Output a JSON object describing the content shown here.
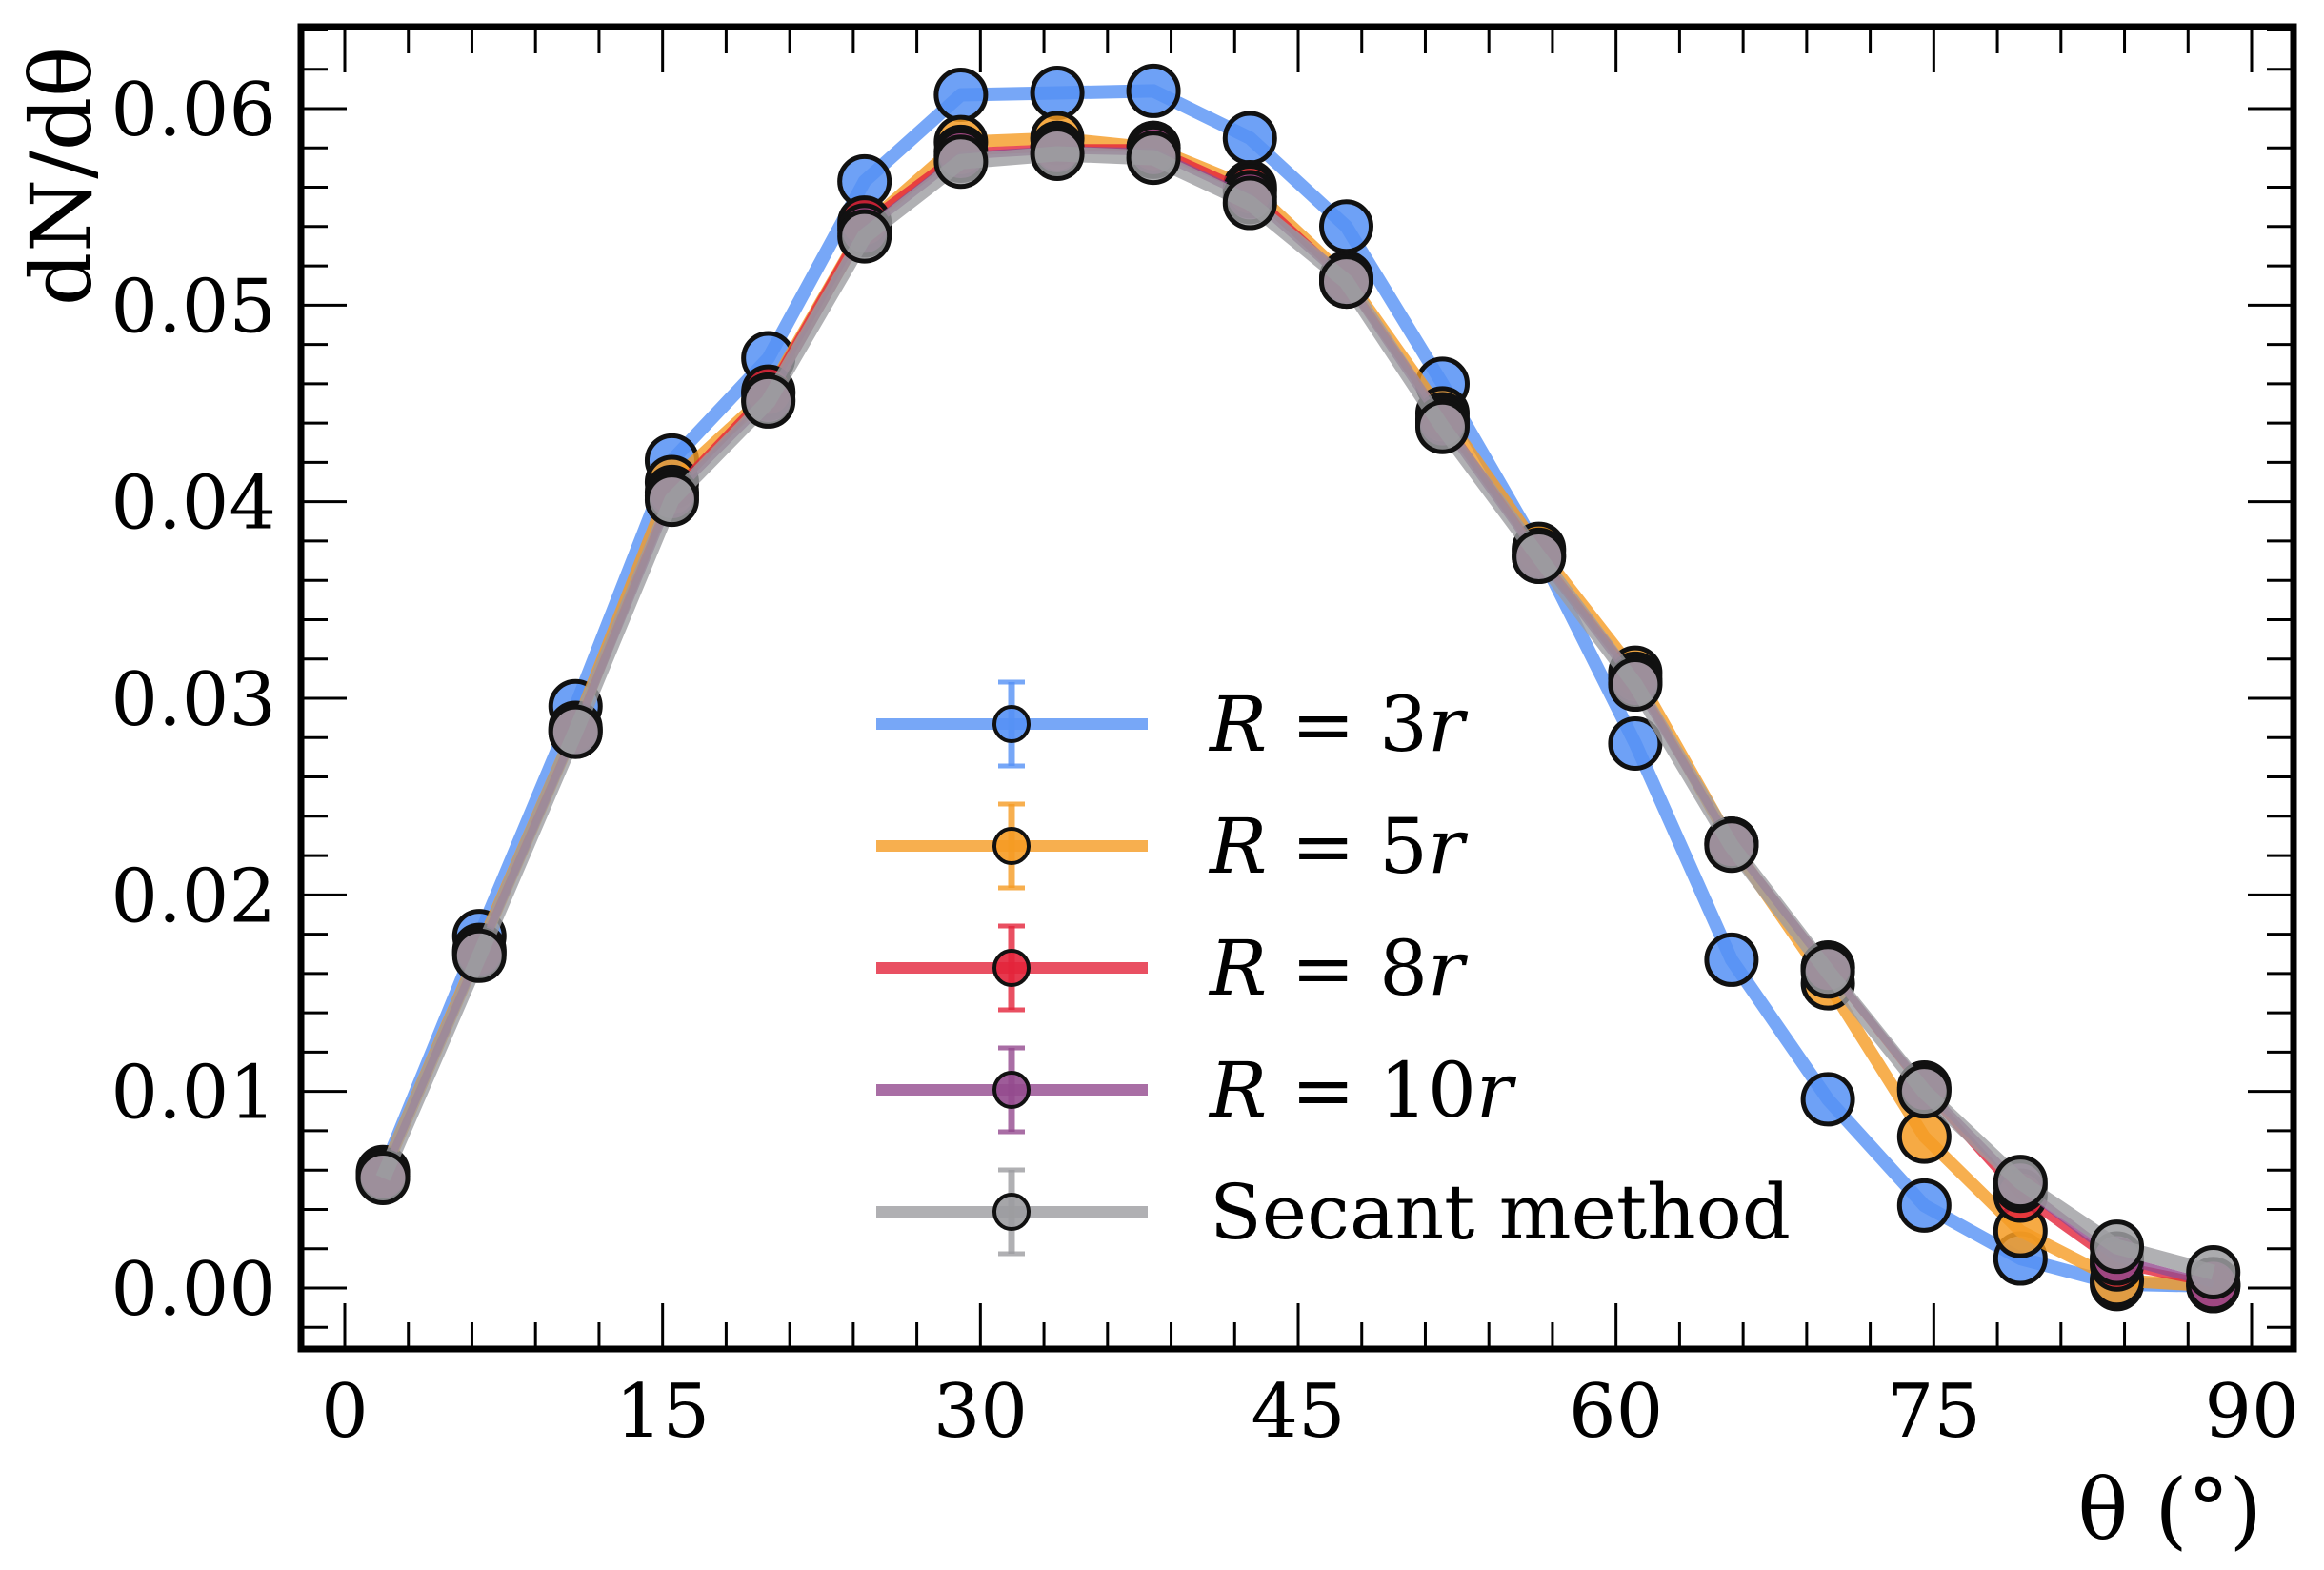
{
  "chart_data": {
    "type": "line",
    "title": "",
    "xlabel": "θ (°)",
    "ylabel": "dN/dθ",
    "xlim": [
      -1.8,
      92
    ],
    "ylim": [
      -0.0025,
      0.064
    ],
    "xticks": [
      0,
      15,
      30,
      45,
      60,
      75,
      90
    ],
    "xtick_labels": [
      "0",
      "15",
      "30",
      "45",
      "60",
      "75",
      "90"
    ],
    "yticks": [
      0.0,
      0.01,
      0.02,
      0.03,
      0.04,
      0.05,
      0.06
    ],
    "ytick_labels": [
      "0.00",
      "0.01",
      "0.02",
      "0.03",
      "0.04",
      "0.05",
      "0.06"
    ],
    "x_minor_step": 3,
    "y_minor_step": 0.002,
    "grid": false,
    "legend_position": "lower-center",
    "x": [
      1.8,
      6.35,
      10.89,
      15.44,
      19.99,
      24.53,
      29.08,
      33.63,
      38.17,
      42.72,
      47.27,
      51.81,
      56.36,
      60.91,
      65.45,
      70.0,
      74.55,
      79.09,
      83.64,
      88.19
    ],
    "series": [
      {
        "name": "R = 3r",
        "label_parts": [
          "R",
          " = 3",
          "r"
        ],
        "color": "#5591f5",
        "values": [
          0.0059,
          0.0179,
          0.0296,
          0.0421,
          0.0473,
          0.0563,
          0.0607,
          0.0608,
          0.0609,
          0.0585,
          0.054,
          0.046,
          0.0375,
          0.0277,
          0.0167,
          0.0096,
          0.0042,
          0.0015,
          0.0002,
          0.0001
        ]
      },
      {
        "name": "R = 5r",
        "label_parts": [
          "R",
          " = 5",
          "r"
        ],
        "color": "#f59b23",
        "values": [
          0.0058,
          0.0172,
          0.0285,
          0.041,
          0.0455,
          0.054,
          0.0583,
          0.0585,
          0.058,
          0.056,
          0.0514,
          0.0445,
          0.0376,
          0.0313,
          0.0226,
          0.0155,
          0.0077,
          0.0029,
          0.0004,
          0.0001
        ]
      },
      {
        "name": "R = 8r",
        "label_parts": [
          "R",
          " = 8",
          "r"
        ],
        "color": "#e3243b",
        "values": [
          0.0057,
          0.0171,
          0.0284,
          0.0405,
          0.0456,
          0.0542,
          0.0578,
          0.058,
          0.058,
          0.0558,
          0.0513,
          0.0442,
          0.0373,
          0.031,
          0.0226,
          0.0163,
          0.0101,
          0.0047,
          0.0012,
          0.0002
        ]
      },
      {
        "name": "R = 10r",
        "label_parts": [
          "R",
          " = 10",
          "r"
        ],
        "color": "#934a8e",
        "values": [
          0.0057,
          0.017,
          0.0283,
          0.0403,
          0.0452,
          0.0538,
          0.0576,
          0.0579,
          0.0578,
          0.0555,
          0.0512,
          0.044,
          0.0372,
          0.0308,
          0.0226,
          0.0163,
          0.0102,
          0.0052,
          0.0015,
          0.0002
        ]
      },
      {
        "name": "Secant method",
        "label_parts": [
          "",
          "Secant method",
          ""
        ],
        "color": "#9c9ca0",
        "values": [
          0.0056,
          0.0169,
          0.0283,
          0.0401,
          0.0451,
          0.0535,
          0.0573,
          0.0577,
          0.0575,
          0.0552,
          0.0512,
          0.0438,
          0.0372,
          0.0307,
          0.0225,
          0.0161,
          0.01,
          0.0054,
          0.0021,
          0.0008
        ]
      }
    ]
  }
}
